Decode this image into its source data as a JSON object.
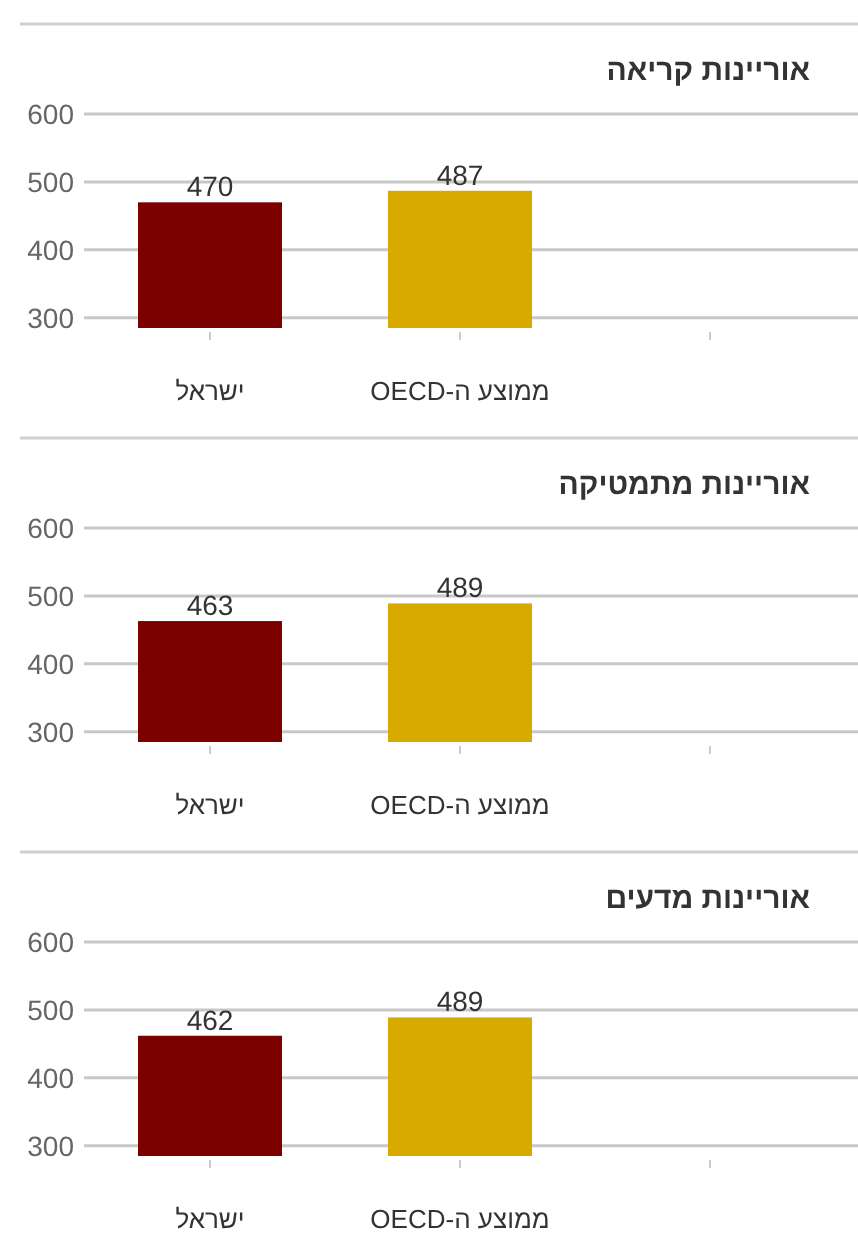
{
  "chart_data": [
    {
      "type": "bar",
      "title": "אוריינות קריאה",
      "categories": [
        "ישראל",
        "ממוצע ה-OECD",
        null
      ],
      "values": [
        470,
        487,
        null
      ],
      "colors": [
        "#7b0000",
        "#d8aa00",
        null
      ],
      "ylim": [
        285,
        600
      ],
      "yticks": [
        300,
        400,
        500,
        600
      ],
      "grid": "y",
      "data_labels": true
    },
    {
      "type": "bar",
      "title": "אוריינות מתמטיקה",
      "categories": [
        "ישראל",
        "ממוצע ה-OECD",
        null
      ],
      "values": [
        463,
        489,
        null
      ],
      "colors": [
        "#7b0000",
        "#d8aa00",
        null
      ],
      "ylim": [
        285,
        600
      ],
      "yticks": [
        300,
        400,
        500,
        600
      ],
      "grid": "y",
      "data_labels": true
    },
    {
      "type": "bar",
      "title": "אוריינות מדעים",
      "categories": [
        "ישראל",
        "ממוצע ה-OECD",
        null
      ],
      "values": [
        462,
        489,
        null
      ],
      "colors": [
        "#7b0000",
        "#d8aa00",
        null
      ],
      "ylim": [
        285,
        600
      ],
      "yticks": [
        300,
        400,
        500,
        600
      ],
      "grid": "y",
      "data_labels": true
    }
  ]
}
